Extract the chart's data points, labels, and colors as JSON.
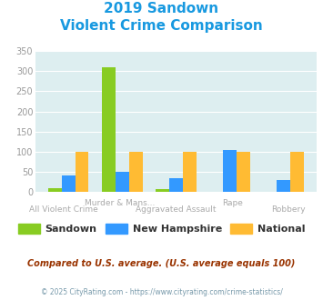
{
  "title_line1": "2019 Sandown",
  "title_line2": "Violent Crime Comparison",
  "title_color": "#1899e0",
  "categories": [
    "All Violent Crime",
    "Murder & Mans...",
    "Aggravated Assault",
    "Rape",
    "Robbery"
  ],
  "sandown": [
    10,
    310,
    7,
    0,
    0
  ],
  "new_hampshire": [
    42,
    50,
    35,
    104,
    30
  ],
  "national": [
    100,
    100,
    100,
    100,
    100
  ],
  "sandown_color": "#88cc22",
  "new_hampshire_color": "#3399ff",
  "national_color": "#ffbb33",
  "ylim": [
    0,
    350
  ],
  "yticks": [
    0,
    50,
    100,
    150,
    200,
    250,
    300,
    350
  ],
  "plot_bg": "#ddeef0",
  "grid_color": "#ffffff",
  "bar_width": 0.25,
  "note": "Compared to U.S. average. (U.S. average equals 100)",
  "note_color": "#993300",
  "footer": "© 2025 CityRating.com - https://www.cityrating.com/crime-statistics/",
  "footer_color": "#7799aa",
  "legend_labels": [
    "Sandown",
    "New Hampshire",
    "National"
  ],
  "label_color": "#aaaaaa",
  "xtick_top": [
    "",
    "Murder & Mans...",
    "",
    "Rape",
    ""
  ],
  "xtick_bot": [
    "All Violent Crime",
    "",
    "Aggravated Assault",
    "",
    "Robbery"
  ]
}
